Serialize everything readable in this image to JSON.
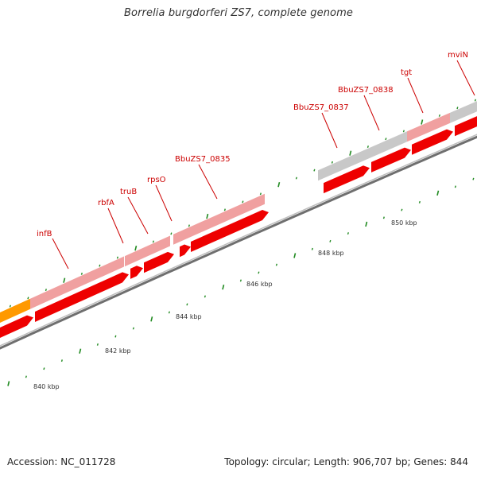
{
  "title": "Borrelia burgdorferi ZS7, complete genome",
  "footer": {
    "accession": "Accession: NC_011728",
    "summary": "Topology: circular; Length: 906,707 bp; Genes: 844"
  },
  "colors": {
    "background": "#ffffff",
    "backbone": "#8a8a8a",
    "cds": "#ee0000",
    "gene_known": "#f0a0a0",
    "gene_hypothetical": "#c8c8c8",
    "gene_orange": "#ff9900",
    "tick": "#228b22",
    "label": "#cc0000"
  },
  "map": {
    "scale_labels": [
      "840 kbp",
      "842 kbp",
      "844 kbp",
      "846 kbp",
      "848 kbp",
      "850 kbp"
    ],
    "gene_labels": [
      "infB",
      "rbfA",
      "truB",
      "rpsO",
      "BbuZS7_0835",
      "BbuZS7_0837",
      "BbuZS7_0838",
      "tgt",
      "mviN"
    ]
  }
}
